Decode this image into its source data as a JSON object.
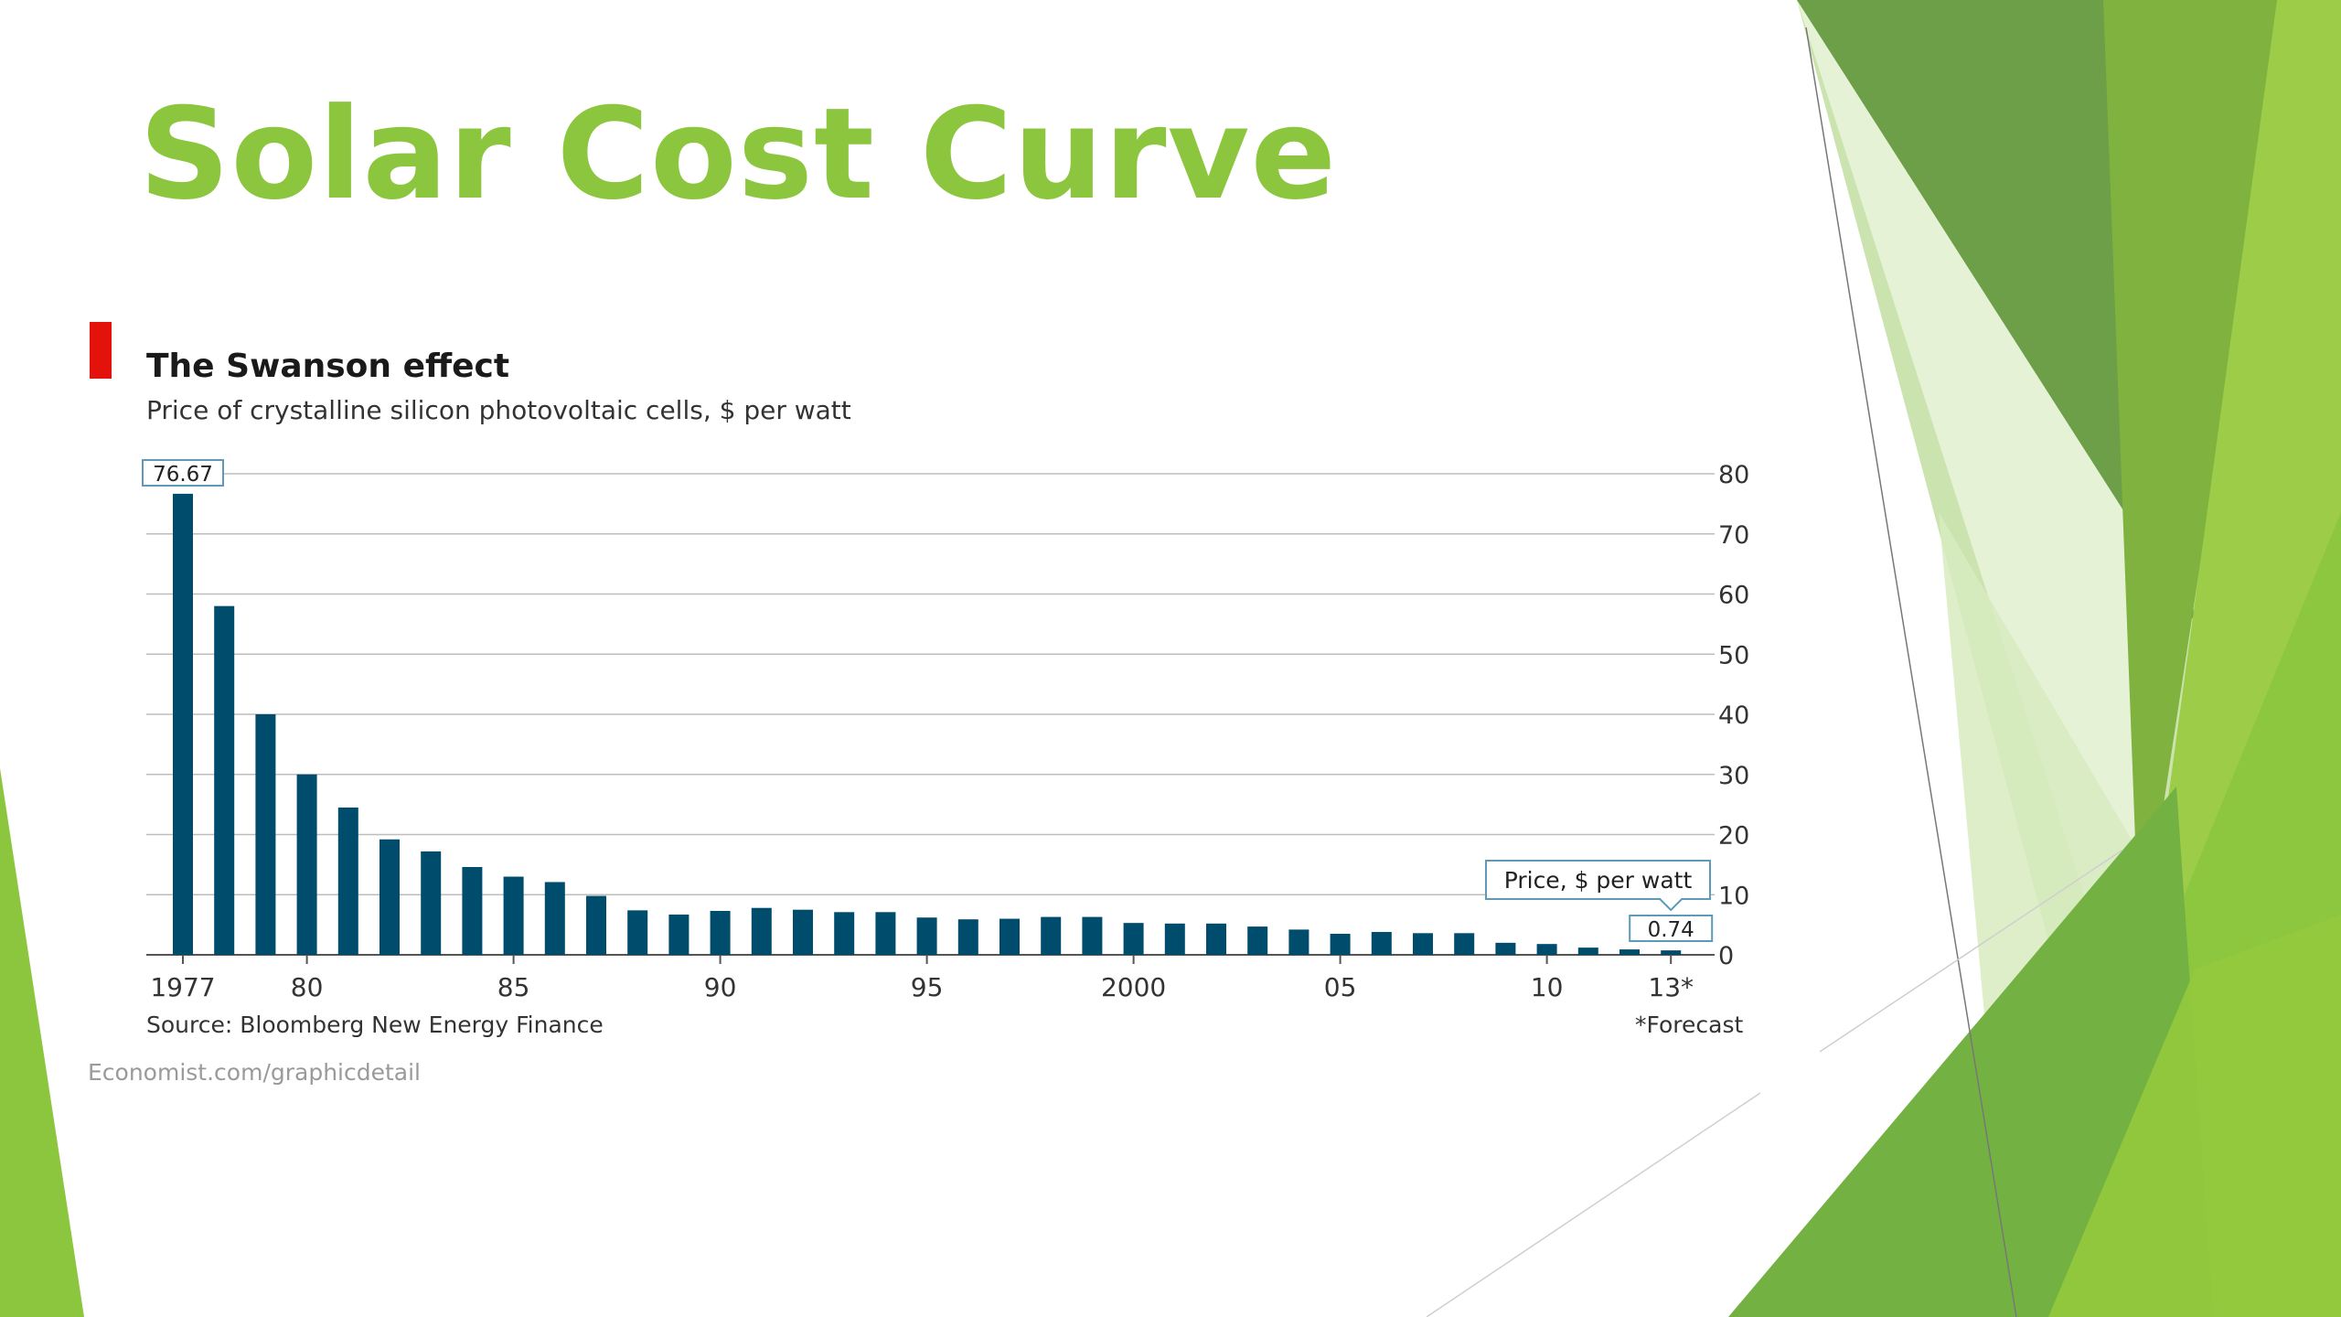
{
  "slide": {
    "title": "Solar Cost Curve"
  },
  "theme": {
    "accent": "#8cc63f",
    "bar_color": "#004c6d",
    "marker_color": "#e3120b"
  },
  "chart_data": {
    "type": "bar",
    "title": "The Swanson effect",
    "subtitle": "Price of crystalline silicon photovoltaic cells, $ per watt",
    "ylabel": "",
    "xlabel": "",
    "ylim": [
      0,
      80
    ],
    "yticks": [
      "0",
      "10",
      "20",
      "30",
      "40",
      "50",
      "60",
      "70",
      "80"
    ],
    "y_axis_side": "right",
    "grid": true,
    "categories": [
      "1977",
      "1978",
      "1979",
      "1980",
      "1981",
      "1982",
      "1983",
      "1984",
      "1985",
      "1986",
      "1987",
      "1988",
      "1989",
      "1990",
      "1991",
      "1992",
      "1993",
      "1994",
      "1995",
      "1996",
      "1997",
      "1998",
      "1999",
      "2000",
      "2001",
      "2002",
      "2003",
      "2004",
      "2005",
      "2006",
      "2007",
      "2008",
      "2009",
      "2010",
      "2011",
      "2012",
      "2013"
    ],
    "xtick_labels": [
      {
        "category": "1977",
        "label": "1977"
      },
      {
        "category": "1980",
        "label": "80"
      },
      {
        "category": "1985",
        "label": "85"
      },
      {
        "category": "1990",
        "label": "90"
      },
      {
        "category": "1995",
        "label": "95"
      },
      {
        "category": "2000",
        "label": "2000"
      },
      {
        "category": "2005",
        "label": "05"
      },
      {
        "category": "2010",
        "label": "10"
      },
      {
        "category": "2013",
        "label": "13*"
      }
    ],
    "series": [
      {
        "values": [
          76.67,
          58,
          40,
          30,
          24.5,
          19.2,
          17.2,
          14.6,
          13,
          12.1,
          9.8,
          7.4,
          6.7,
          7.3,
          7.8,
          7.5,
          7.1,
          7.1,
          6.2,
          5.9,
          6.0,
          6.3,
          6.3,
          5.3,
          5.2,
          5.2,
          4.7,
          4.2,
          3.5,
          3.8,
          3.6,
          3.6,
          2.0,
          1.8,
          1.2,
          0.9,
          0.74
        ]
      }
    ],
    "annotations": [
      {
        "category": "1977",
        "text": "76.67"
      },
      {
        "category": "2013",
        "text": "0.74"
      },
      {
        "text": "Price, $ per watt"
      }
    ],
    "source": "Source: Bloomberg New Energy Finance",
    "footnote": "*Forecast",
    "credit": "Economist.com/graphicdetail"
  }
}
